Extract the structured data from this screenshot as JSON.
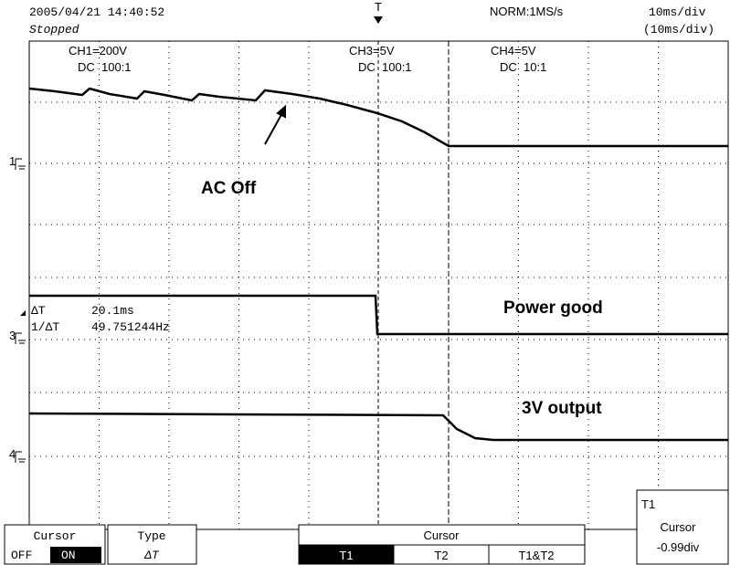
{
  "header": {
    "datetime": "2005/04/21 14:40:52",
    "status": "Stopped",
    "mode": "NORM:1MS/s",
    "timebase": "10ms/div",
    "timebase_sub": "(10ms/div)"
  },
  "channels": [
    {
      "name": "CH1=200V",
      "coupling": "DC  100:1"
    },
    {
      "name": "CH3=5V",
      "coupling": "DC  100:1"
    },
    {
      "name": "CH4=5V",
      "coupling": "DC  10:1"
    }
  ],
  "trigger": "T",
  "markers": [
    "1",
    "3",
    "4"
  ],
  "annotations": [
    "AC Off",
    "Power good",
    "3V output"
  ],
  "measurements": [
    {
      "label": "ΔT",
      "value": "20.1ms"
    },
    {
      "label": "1/ΔT",
      "value": "49.751244Hz"
    }
  ],
  "menu": {
    "cursor": {
      "title": "Cursor",
      "off": "OFF",
      "on": "ON"
    },
    "type": {
      "title": "Type",
      "value": "ΔT"
    },
    "cursor_select": {
      "title": "Cursor",
      "options": [
        "T1",
        "T2",
        "T1&T2"
      ]
    },
    "position": {
      "target": "T1",
      "title": "Cursor",
      "value": "-0.99div"
    }
  }
}
